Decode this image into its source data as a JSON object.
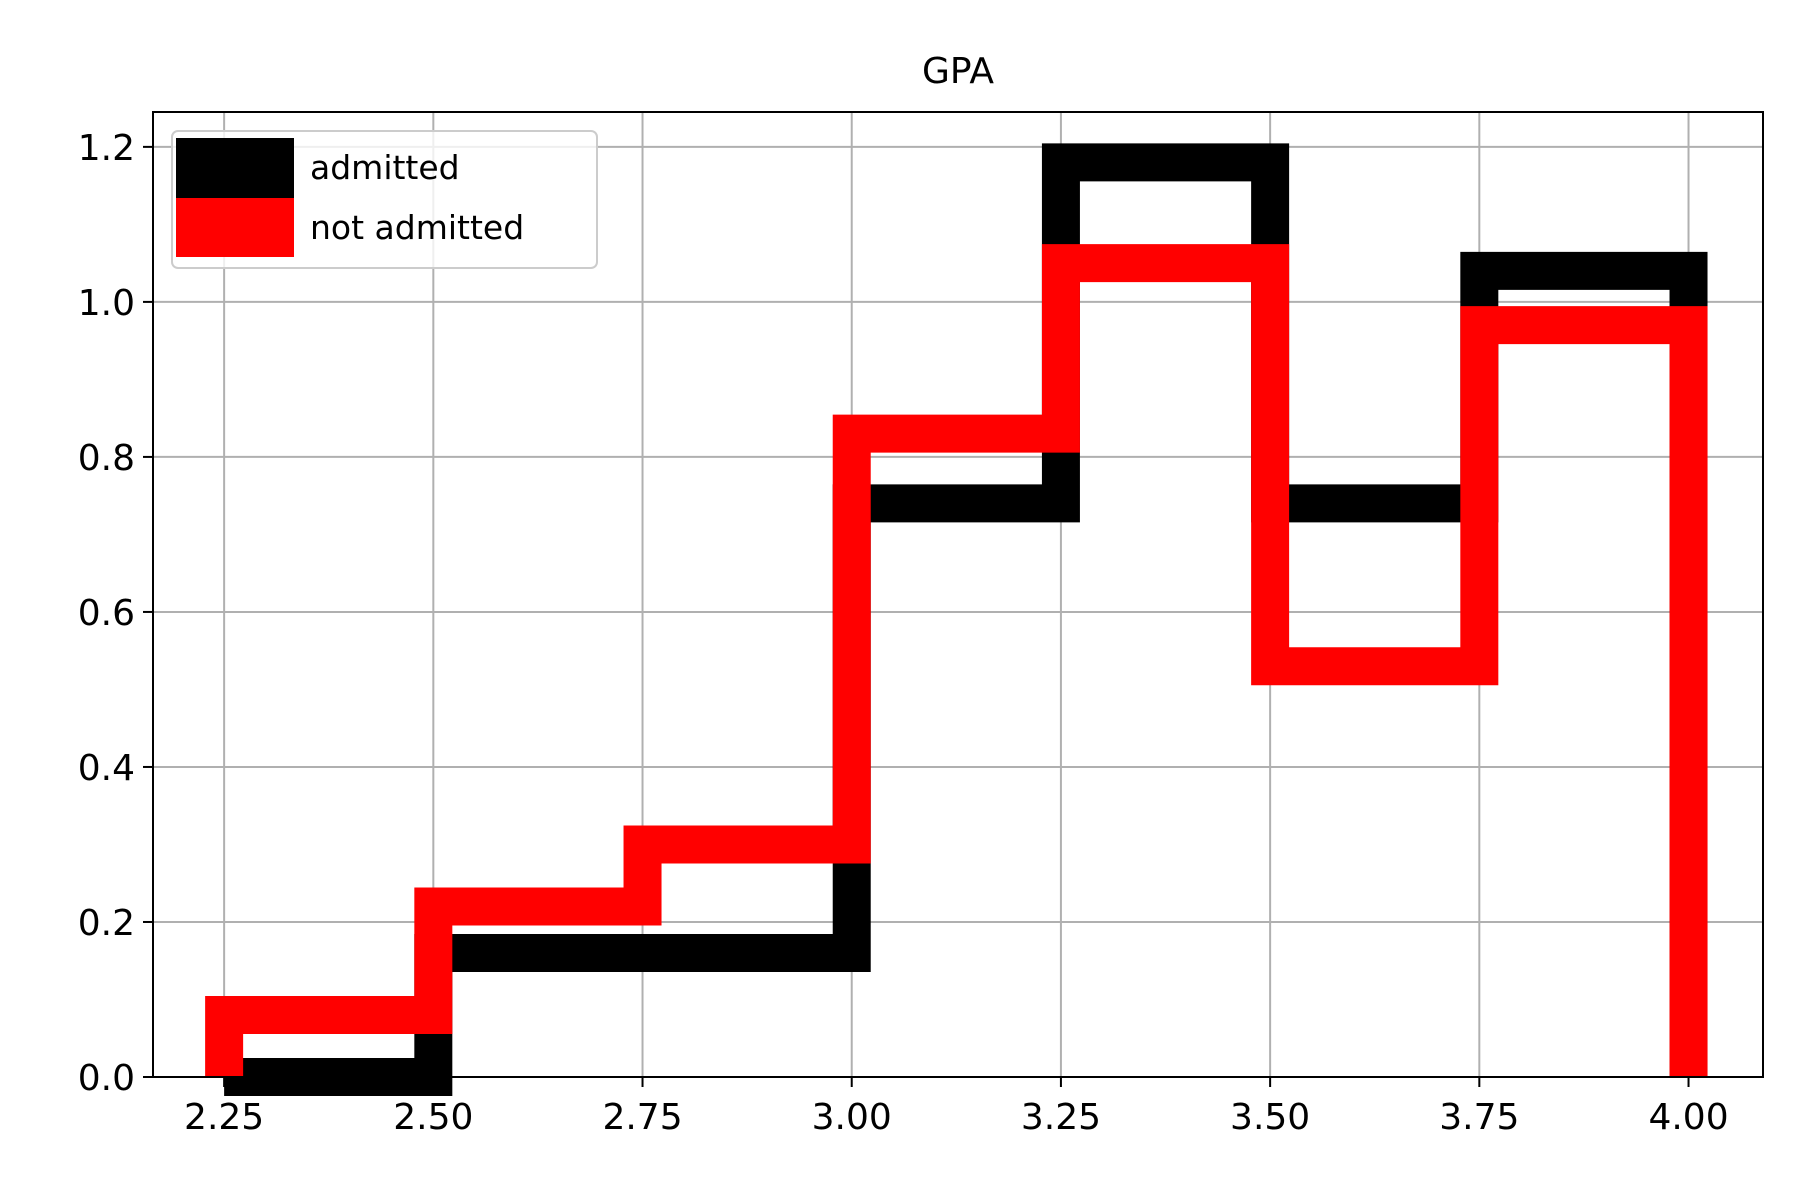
{
  "chart_data": {
    "type": "histogram-step",
    "title": "GPA",
    "xlabel": "",
    "ylabel": "",
    "xlim": [
      2.165,
      4.089
    ],
    "ylim": [
      0,
      1.245
    ],
    "x_ticks": [
      2.25,
      2.5,
      2.75,
      3.0,
      3.25,
      3.5,
      3.75,
      4.0
    ],
    "x_tick_labels": [
      "2.25",
      "2.50",
      "2.75",
      "3.00",
      "3.25",
      "3.50",
      "3.75",
      "4.00"
    ],
    "y_ticks": [
      0.0,
      0.2,
      0.4,
      0.6,
      0.8,
      1.0,
      1.2
    ],
    "y_tick_labels": [
      "0.0",
      "0.2",
      "0.4",
      "0.6",
      "0.8",
      "1.0",
      "1.2"
    ],
    "grid": true,
    "legend_position": "upper left",
    "series": [
      {
        "name": "admitted",
        "color": "#000000",
        "bin_edges": [
          2.25,
          2.5,
          3.0,
          3.25,
          3.5,
          3.75,
          4.0
        ],
        "values": [
          0.0,
          0.16,
          0.74,
          1.18,
          0.74,
          1.04
        ]
      },
      {
        "name": "not admitted",
        "color": "#ff0000",
        "bin_edges": [
          2.25,
          2.5,
          2.75,
          3.0,
          3.25,
          3.5,
          3.75,
          4.0
        ],
        "values": [
          0.08,
          0.22,
          0.3,
          0.83,
          1.05,
          0.53,
          0.97
        ]
      }
    ]
  }
}
